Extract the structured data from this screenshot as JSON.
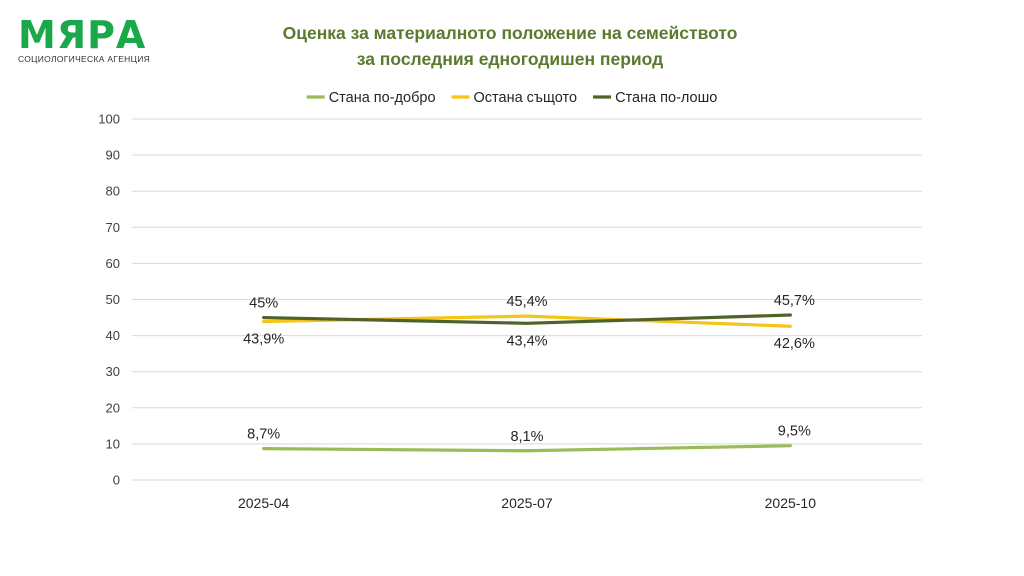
{
  "logo": {
    "name": "МЯРА",
    "subtitle": "СОЦИОЛОГИЧЕСКА АГЕНЦИЯ"
  },
  "chart_data": {
    "type": "line",
    "title_line1": "Оценка за материалното положение на семейството",
    "title_line2": "за последния едногодишен период",
    "categories": [
      "2025-04",
      "2025-07",
      "2025-10"
    ],
    "ylim": [
      0,
      100
    ],
    "yticks": [
      0,
      10,
      20,
      30,
      40,
      50,
      60,
      70,
      80,
      90,
      100
    ],
    "grid": true,
    "legend_position": "top",
    "series": [
      {
        "name": "Стана по-добро",
        "color": "#9bbb59",
        "values": [
          8.7,
          8.1,
          9.5
        ],
        "labels": [
          "8,7%",
          "8,1%",
          "9,5%"
        ],
        "label_side": "above"
      },
      {
        "name": "Остана същото",
        "color": "#f5c518",
        "values": [
          43.9,
          45.4,
          42.6
        ],
        "labels": [
          "43,9%",
          "45,4%",
          "42,6%"
        ],
        "label_side": [
          "below",
          "above",
          "below"
        ]
      },
      {
        "name": "Стана по-лошо",
        "color": "#4f6228",
        "values": [
          45,
          43.4,
          45.7
        ],
        "labels": [
          "45%",
          "43,4%",
          "45,7%"
        ],
        "label_side": [
          "above",
          "below",
          "above"
        ]
      }
    ]
  }
}
